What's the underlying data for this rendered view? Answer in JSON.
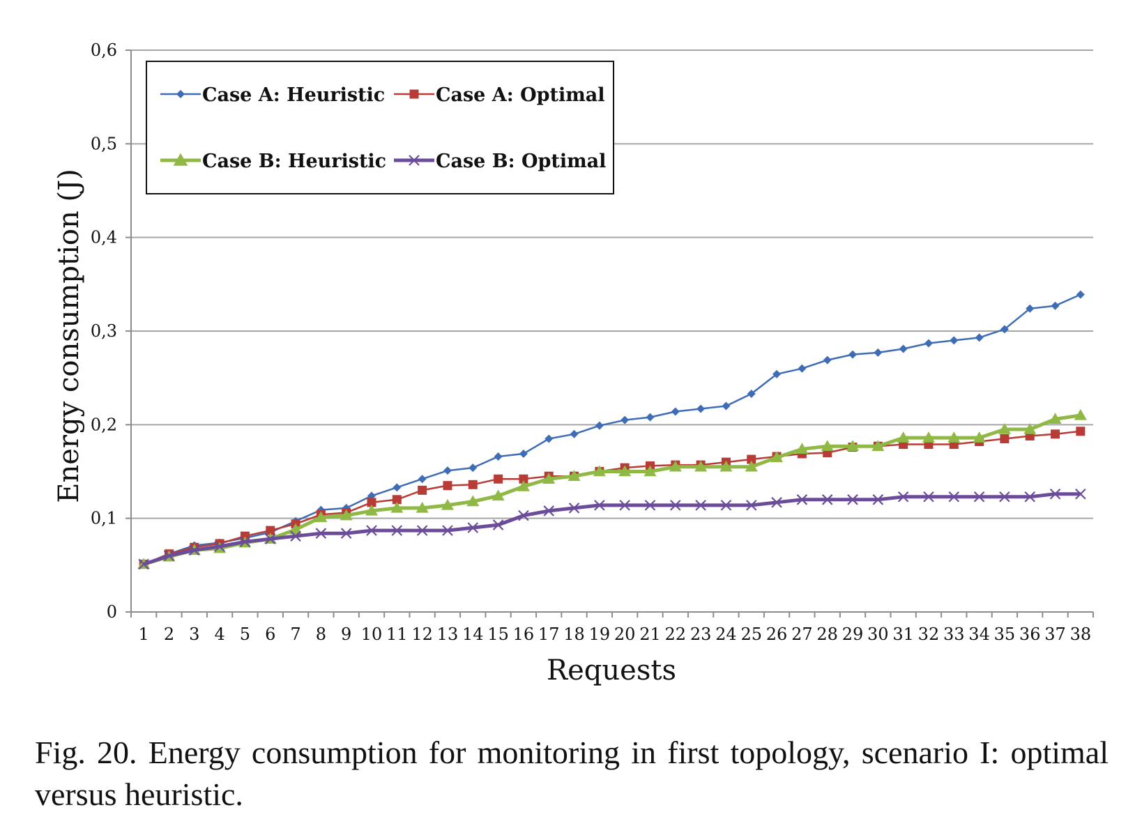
{
  "caption": "Fig. 20. Energy consumption for monitoring in first topology, scenario I: optimal versus heuristic.",
  "chart_data": {
    "type": "line",
    "xlabel": "Requests",
    "ylabel": "Energy consumption (J)",
    "ylim": [
      0,
      0.6
    ],
    "yticks": [
      "0",
      "0,1",
      "0,2",
      "0,3",
      "0,4",
      "0,5",
      "0,6"
    ],
    "categories": [
      "1",
      "2",
      "3",
      "4",
      "5",
      "6",
      "7",
      "8",
      "9",
      "10",
      "11",
      "12",
      "13",
      "14",
      "15",
      "16",
      "17",
      "18",
      "19",
      "20",
      "21",
      "22",
      "23",
      "24",
      "25",
      "26",
      "27",
      "28",
      "29",
      "30",
      "31",
      "32",
      "33",
      "34",
      "35",
      "36",
      "37",
      "38"
    ],
    "grid": "horizontal",
    "legend_position": "top-left",
    "series": [
      {
        "name": "Case A: Heuristic",
        "color": "#3f6db5",
        "marker": "diamond",
        "values": [
          0.051,
          0.062,
          0.071,
          0.074,
          0.079,
          0.085,
          0.097,
          0.109,
          0.111,
          0.124,
          0.133,
          0.142,
          0.151,
          0.154,
          0.166,
          0.169,
          0.185,
          0.19,
          0.199,
          0.205,
          0.208,
          0.214,
          0.217,
          0.22,
          0.233,
          0.254,
          0.26,
          0.269,
          0.275,
          0.277,
          0.281,
          0.287,
          0.29,
          0.293,
          0.302,
          0.324,
          0.327,
          0.339
        ]
      },
      {
        "name": "Case A: Optimal",
        "color": "#b83b36",
        "marker": "square",
        "values": [
          0.051,
          0.062,
          0.069,
          0.073,
          0.081,
          0.087,
          0.094,
          0.104,
          0.106,
          0.117,
          0.12,
          0.13,
          0.135,
          0.136,
          0.142,
          0.142,
          0.145,
          0.145,
          0.15,
          0.154,
          0.156,
          0.157,
          0.157,
          0.16,
          0.163,
          0.166,
          0.169,
          0.17,
          0.176,
          0.177,
          0.179,
          0.179,
          0.179,
          0.182,
          0.185,
          0.188,
          0.19,
          0.193
        ]
      },
      {
        "name": "Case B: Heuristic",
        "color": "#8fb944",
        "marker": "triangle",
        "values": [
          0.051,
          0.059,
          0.066,
          0.068,
          0.074,
          0.078,
          0.088,
          0.101,
          0.103,
          0.108,
          0.111,
          0.111,
          0.114,
          0.118,
          0.124,
          0.134,
          0.142,
          0.145,
          0.15,
          0.15,
          0.15,
          0.155,
          0.155,
          0.155,
          0.155,
          0.165,
          0.174,
          0.177,
          0.177,
          0.177,
          0.186,
          0.186,
          0.186,
          0.186,
          0.195,
          0.195,
          0.206,
          0.21
        ]
      },
      {
        "name": "Case B: Optimal",
        "color": "#6a4c9a",
        "marker": "x",
        "values": [
          0.051,
          0.06,
          0.066,
          0.07,
          0.075,
          0.078,
          0.081,
          0.084,
          0.084,
          0.087,
          0.087,
          0.087,
          0.087,
          0.09,
          0.093,
          0.103,
          0.108,
          0.111,
          0.114,
          0.114,
          0.114,
          0.114,
          0.114,
          0.114,
          0.114,
          0.117,
          0.12,
          0.12,
          0.12,
          0.12,
          0.123,
          0.123,
          0.123,
          0.123,
          0.123,
          0.123,
          0.126,
          0.126
        ]
      }
    ]
  }
}
